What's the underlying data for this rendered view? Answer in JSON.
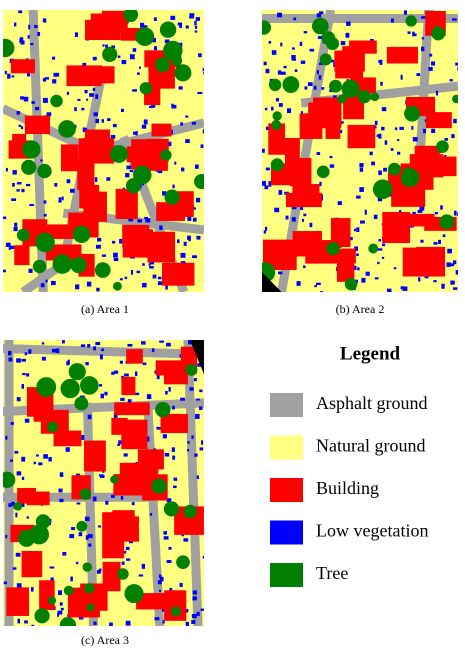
{
  "figures": [
    {
      "caption": "(a)  Area 1"
    },
    {
      "caption": "(b)  Area 2"
    },
    {
      "caption": "(c)  Area 3"
    }
  ],
  "legend": {
    "title": "Legend",
    "items": [
      {
        "label": "Asphalt ground",
        "color": "#a0a0a0"
      },
      {
        "label": "Natural ground",
        "color": "#ffff80"
      },
      {
        "label": "Building",
        "color": "#ff0000"
      },
      {
        "label": "Low vegetation",
        "color": "#0000ff"
      },
      {
        "label": "Tree",
        "color": "#008000"
      }
    ]
  }
}
